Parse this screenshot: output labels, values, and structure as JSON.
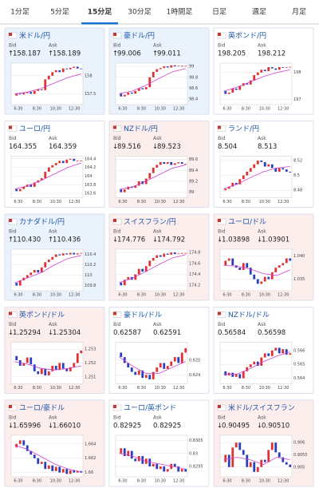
{
  "tabs": [
    "1分足",
    "5分足",
    "15分足",
    "30分足",
    "1時間足",
    "日足",
    "週足",
    "月足"
  ],
  "active_tab": 2,
  "bid_label": "Bid",
  "ask_label": "Ask",
  "time_labels": [
    "6:30",
    "8:30",
    "10:30",
    "12:30"
  ],
  "cards": [
    {
      "title": "米ドル/円",
      "trend": "up",
      "arrow": "↑",
      "bid": "158.187",
      "ask": "158.189",
      "chart": {
        "ylim": [
          157.2,
          158.35
        ],
        "yticks": [
          158,
          157.5
        ],
        "closes": [
          157.45,
          157.5,
          157.48,
          157.52,
          157.55,
          157.5,
          157.58,
          157.62,
          157.6,
          157.9,
          158.0,
          158.1,
          158.15,
          158.1,
          158.2,
          158.18,
          158.22,
          158.25,
          158.2,
          158.19
        ],
        "ma": [
          157.5,
          157.55,
          157.65,
          157.8,
          157.95,
          158.05
        ]
      }
    },
    {
      "title": "豪ドル/円",
      "trend": "up",
      "arrow": "↑",
      "bid": "99.006",
      "ask": "99.011",
      "chart": {
        "ylim": [
          98.3,
          99.06
        ],
        "yticks": [
          99,
          98.8,
          98.6,
          98.4
        ],
        "closes": [
          98.5,
          98.45,
          98.48,
          98.52,
          98.5,
          98.55,
          98.6,
          98.58,
          98.62,
          98.8,
          98.9,
          98.95,
          98.97,
          99.0,
          98.98,
          99.02,
          99.0,
          99.01,
          99.0,
          99.01
        ],
        "ma": [
          98.5,
          98.55,
          98.65,
          98.78,
          98.9,
          98.96
        ]
      }
    },
    {
      "title": "英ポンド/円",
      "trend": "none",
      "arrow": "",
      "bid": "198.205",
      "ask": "198.212",
      "chart": {
        "ylim": [
          196.8,
          198.35
        ],
        "yticks": [
          198,
          197
        ],
        "closes": [
          197.3,
          197.2,
          197.25,
          197.4,
          197.35,
          197.5,
          197.6,
          197.55,
          197.7,
          197.9,
          198.0,
          198.1,
          198.05,
          198.2,
          198.15,
          198.1,
          198.2,
          198.18,
          198.2,
          198.21
        ],
        "ma": [
          197.3,
          197.45,
          197.65,
          197.85,
          198.0,
          198.1
        ]
      }
    },
    {
      "title": "ユーロ/円",
      "trend": "none",
      "arrow": "",
      "bid": "164.355",
      "ask": "164.359",
      "chart": {
        "ylim": [
          163.5,
          164.46
        ],
        "yticks": [
          164.4,
          164.2,
          164,
          163.8,
          163.6
        ],
        "closes": [
          163.7,
          163.65,
          163.7,
          163.75,
          163.8,
          163.75,
          163.85,
          163.9,
          163.95,
          164.1,
          164.2,
          164.25,
          164.3,
          164.35,
          164.3,
          164.38,
          164.4,
          164.35,
          164.36,
          164.36
        ],
        "ma": [
          163.7,
          163.78,
          163.9,
          164.05,
          164.2,
          164.3
        ]
      }
    },
    {
      "title": "NZドル/円",
      "trend": "down",
      "arrow": "↓",
      "bid": "89.516",
      "ask": "89.523",
      "chart": {
        "ylim": [
          88.9,
          89.66
        ],
        "yticks": [
          89.6,
          89.4,
          89.2,
          89
        ],
        "closes": [
          89.05,
          89.0,
          89.05,
          89.1,
          89.08,
          89.12,
          89.2,
          89.15,
          89.25,
          89.35,
          89.45,
          89.5,
          89.55,
          89.52,
          89.55,
          89.5,
          89.53,
          89.55,
          89.52,
          89.52
        ],
        "ma": [
          89.05,
          89.1,
          89.2,
          89.32,
          89.44,
          89.5
        ]
      }
    },
    {
      "title": "ランド/円",
      "trend": "none",
      "arrow": "",
      "bid": "8.504",
      "ask": "8.513",
      "chart": {
        "ylim": [
          8.47,
          8.526
        ],
        "yticks": [
          8.52,
          8.5,
          8.48
        ],
        "closes": [
          8.48,
          8.482,
          8.485,
          8.49,
          8.488,
          8.495,
          8.5,
          8.505,
          8.51,
          8.515,
          8.52,
          8.518,
          8.512,
          8.515,
          8.51,
          8.505,
          8.51,
          8.508,
          8.505,
          8.504
        ],
        "ma": [
          8.482,
          8.488,
          8.497,
          8.505,
          8.51,
          8.512
        ]
      }
    },
    {
      "title": "カナダドル/円",
      "trend": "up",
      "arrow": "↑",
      "bid": "110.430",
      "ask": "110.436",
      "chart": {
        "ylim": [
          109.7,
          110.5
        ],
        "yticks": [
          110.4,
          110.2,
          110,
          109.8
        ],
        "closes": [
          109.85,
          109.8,
          109.9,
          109.95,
          110.0,
          110.05,
          110.1,
          110.05,
          110.15,
          110.25,
          110.3,
          110.35,
          110.4,
          110.38,
          110.42,
          110.4,
          110.43,
          110.4,
          110.42,
          110.43
        ],
        "ma": [
          109.85,
          109.95,
          110.05,
          110.2,
          110.32,
          110.38
        ]
      }
    },
    {
      "title": "スイスフラン/円",
      "trend": "down",
      "arrow": "↓",
      "bid": "174.776",
      "ask": "174.792",
      "chart": {
        "ylim": [
          174.1,
          174.86
        ],
        "yticks": [
          174.8,
          174.6,
          174.4,
          174.2
        ],
        "closes": [
          174.25,
          174.2,
          174.3,
          174.35,
          174.3,
          174.4,
          174.5,
          174.45,
          174.55,
          174.65,
          174.7,
          174.75,
          174.72,
          174.78,
          174.76,
          174.8,
          174.77,
          174.78,
          174.79,
          174.79
        ],
        "ma": [
          174.25,
          174.33,
          174.45,
          174.58,
          174.7,
          174.76
        ]
      }
    },
    {
      "title": "ユーロ/ドル",
      "trend": "down",
      "arrow": "↓",
      "bid": "1.03898",
      "ask": "1.03901",
      "chart": {
        "ylim": [
          1.0325,
          1.0415
        ],
        "yticks": [
          {
            "value": 1.04,
            "label": "1.040"
          },
          1.035
        ],
        "closes": [
          1.038,
          1.039,
          1.0395,
          1.038,
          1.0375,
          1.037,
          1.0385,
          1.0375,
          1.036,
          1.035,
          1.034,
          1.0345,
          1.0355,
          1.035,
          1.0365,
          1.0375,
          1.038,
          1.0385,
          1.0395,
          1.039
        ],
        "ma": [
          1.038,
          1.0378,
          1.0372,
          1.0362,
          1.0358,
          1.037
        ]
      }
    },
    {
      "title": "英ポンド/ドル",
      "trend": "down",
      "arrow": "↓",
      "bid": "1.25294",
      "ask": "1.25304",
      "chart": {
        "ylim": [
          1.2505,
          1.2535
        ],
        "yticks": [
          1.253,
          1.252,
          1.251
        ],
        "closes": [
          1.2525,
          1.2522,
          1.2518,
          1.252,
          1.2524,
          1.2519,
          1.2514,
          1.2512,
          1.2516,
          1.2511,
          1.2514,
          1.2518,
          1.2515,
          1.252,
          1.2516,
          1.2514,
          1.2517,
          1.252,
          1.2527,
          1.2529
        ],
        "ma": [
          1.2521,
          1.2519,
          1.2516,
          1.2515,
          1.2516,
          1.2518
        ]
      }
    },
    {
      "title": "豪ドル/ドル",
      "trend": "none",
      "arrow": "",
      "bid": "0.62587",
      "ask": "0.62591",
      "chart": {
        "ylim": [
          0.6234,
          0.6262
        ],
        "yticks": [
          0.625,
          0.624
        ],
        "closes": [
          0.6255,
          0.6252,
          0.6248,
          0.6245,
          0.6242,
          0.624,
          0.6243,
          0.6238,
          0.624,
          0.6237,
          0.6242,
          0.6245,
          0.6248,
          0.6244,
          0.6246,
          0.6249,
          0.6252,
          0.6248,
          0.6255,
          0.6258
        ],
        "ma": [
          0.6252,
          0.6246,
          0.6241,
          0.6241,
          0.6245,
          0.6249
        ]
      }
    },
    {
      "title": "NZドル/ドル",
      "trend": "none",
      "arrow": "",
      "bid": "0.56584",
      "ask": "0.56598",
      "chart": {
        "ylim": [
          0.5636,
          0.5666
        ],
        "yticks": [
          0.566,
          0.565,
          0.564
        ],
        "closes": [
          0.5645,
          0.5642,
          0.5644,
          0.5641,
          0.5643,
          0.564,
          0.5645,
          0.5648,
          0.565,
          0.5652,
          0.5649,
          0.5655,
          0.5658,
          0.5656,
          0.566,
          0.5662,
          0.5658,
          0.5661,
          0.5657,
          0.5658
        ],
        "ma": [
          0.5643,
          0.5643,
          0.5647,
          0.5652,
          0.5656,
          0.5659
        ]
      }
    },
    {
      "title": "ユーロ/豪ドル",
      "trend": "down",
      "arrow": "↓",
      "bid": "1.65996",
      "ask": "1.66010",
      "chart": {
        "ylim": [
          1.6594,
          1.6652
        ],
        "yticks": [
          1.664,
          1.662,
          1.66
        ],
        "closes": [
          1.6635,
          1.664,
          1.6645,
          1.6638,
          1.663,
          1.6625,
          1.662,
          1.6612,
          1.6615,
          1.6605,
          1.661,
          1.6602,
          1.6608,
          1.66,
          1.6605,
          1.6598,
          1.6603,
          1.66,
          1.6602,
          1.66
        ],
        "ma": [
          1.6638,
          1.6632,
          1.6622,
          1.6612,
          1.6605,
          1.6601
        ]
      }
    },
    {
      "title": "ユーロ/英ポンド",
      "trend": "none",
      "arrow": "",
      "bid": "0.82925",
      "ask": "0.82925",
      "chart": {
        "ylim": [
          0.8291,
          0.8307
        ],
        "yticks": [
          0.8305,
          0.83,
          0.8295
        ],
        "closes": [
          0.83,
          0.8302,
          0.8299,
          0.8301,
          0.8298,
          0.8297,
          0.8299,
          0.8296,
          0.8298,
          0.8295,
          0.8296,
          0.8294,
          0.8295,
          0.8293,
          0.8294,
          0.8296,
          0.8295,
          0.8293,
          0.8294,
          0.8293
        ],
        "ma": [
          0.83,
          0.8299,
          0.8297,
          0.8296,
          0.8295,
          0.8294
        ]
      }
    },
    {
      "title": "米ドル/スイスフラン",
      "trend": "down",
      "arrow": "↓",
      "bid": "0.90495",
      "ask": "0.90510",
      "chart": {
        "ylim": [
          0.9046,
          0.9063
        ],
        "yticks": [
          0.906,
          0.9055,
          0.905
        ],
        "closes": [
          0.9052,
          0.9055,
          0.905,
          0.9058,
          0.906,
          0.9057,
          0.9055,
          0.905,
          0.9052,
          0.9048,
          0.905,
          0.9053,
          0.9052,
          0.9057,
          0.906,
          0.9056,
          0.9054,
          0.9052,
          0.9051,
          0.905
        ],
        "ma": [
          0.9053,
          0.9054,
          0.9053,
          0.9051,
          0.9054,
          0.9053
        ]
      }
    }
  ]
}
